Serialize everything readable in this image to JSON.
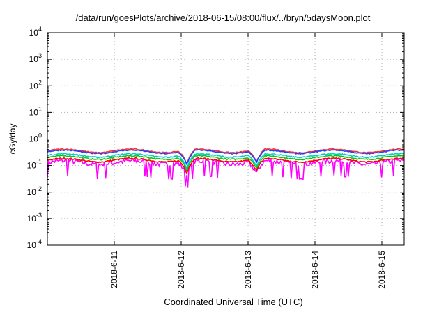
{
  "chart_data": {
    "type": "line",
    "title": "/data/run/goesPlots/archive/2018-06-15/08:00/flux/../bryn/5daysMoon.plot",
    "xlabel": "Coordinated Universal Time (UTC)",
    "ylabel": "cGy/day",
    "yscale": "log",
    "ylim": [
      0.0001,
      10000
    ],
    "xlim": [
      "2018-06-10 00:00",
      "2018-06-15 08:00"
    ],
    "x_ticks": [
      "2018-6-11",
      "2018-6-12",
      "2018-6-13",
      "2018-6-14",
      "2018-6-15"
    ],
    "y_ticks": [
      {
        "base": "10",
        "exp": "4"
      },
      {
        "base": "10",
        "exp": "3"
      },
      {
        "base": "10",
        "exp": "2"
      },
      {
        "base": "10",
        "exp": "1"
      },
      {
        "base": "10",
        "exp": "0"
      },
      {
        "base": "10",
        "exp": "-1"
      },
      {
        "base": "10",
        "exp": "-2"
      },
      {
        "base": "10",
        "exp": "-3"
      },
      {
        "base": "10",
        "exp": "-4"
      }
    ],
    "grid": true,
    "series": [
      {
        "color": "#ff00ff",
        "base": 0.13,
        "noise": 0.45
      },
      {
        "color": "#ff0000",
        "base": 0.16,
        "noise": 0.12
      },
      {
        "color": "#00cc00",
        "base": 0.2,
        "noise": 0.1
      },
      {
        "color": "#00cccc",
        "base": 0.24,
        "noise": 0.1
      },
      {
        "color": "#ff3030",
        "base": 0.36,
        "noise": 0.08
      },
      {
        "color": "#2040ff",
        "base": 0.33,
        "noise": 0.08
      }
    ],
    "dips": [
      {
        "t": "2018-06-12 02:00",
        "factor": 0.3
      },
      {
        "t": "2018-06-13 03:00",
        "factor": 0.35
      }
    ]
  }
}
